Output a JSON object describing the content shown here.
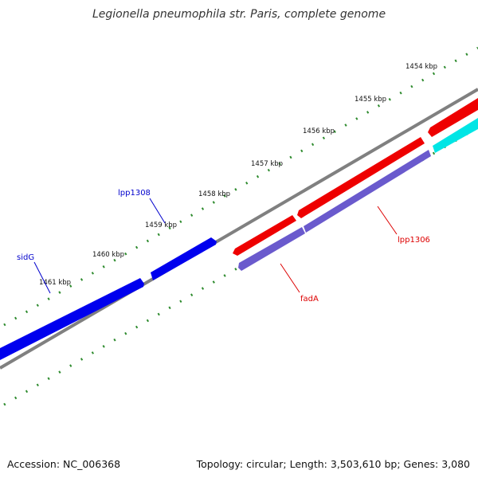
{
  "title": "Legionella pneumophila str. Paris, complete genome",
  "footer": {
    "accession": "Accession: NC_006368",
    "summary": "Topology: circular; Length: 3,503,610 bp; Genes: 3,080"
  },
  "scale_labels": [
    "1454 kbp",
    "1455 kbp",
    "1456 kbp",
    "1457 kbp",
    "1458 kbp",
    "1459 kbp",
    "1460 kbp",
    "1461 kbp"
  ],
  "colors": {
    "forward_gene": "#0000ee",
    "reverse_gene": "#ee0000",
    "reverse_cds": "#6a5acd",
    "other_feature": "#00e5e5",
    "backbone": "#808080",
    "ticks": "#2e8b2e",
    "forward_label": "#0000cc",
    "reverse_label": "#dd0000"
  },
  "gene_labels": {
    "forward": [
      "lpp1308",
      "sidG"
    ],
    "reverse": [
      "lpp1306",
      "fadA"
    ]
  }
}
